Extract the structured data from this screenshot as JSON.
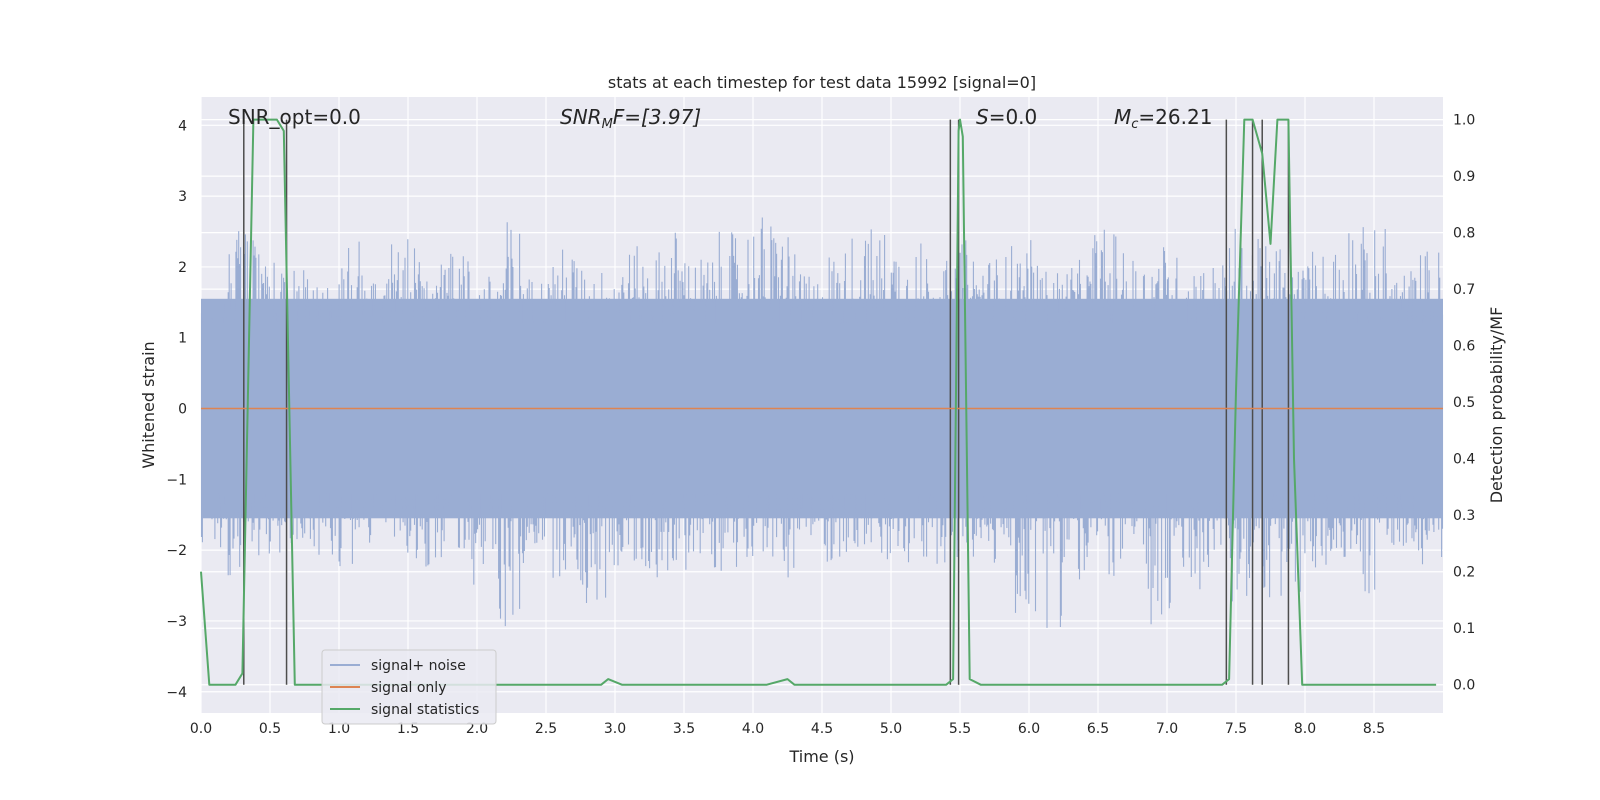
{
  "chart_data": {
    "type": "line",
    "title": "stats at each timestep for test data 15992 [signal=0]",
    "xlabel": "Time (s)",
    "ylabel": "Whitened strain",
    "y2label": "Detection probability/MF",
    "xlim": [
      0,
      9
    ],
    "ylim": [
      -4.3,
      4.4
    ],
    "y2lim": [
      -0.05,
      1.04
    ],
    "xticks": [
      "0.0",
      "0.5",
      "1.0",
      "1.5",
      "2.0",
      "2.5",
      "3.0",
      "3.5",
      "4.0",
      "4.5",
      "5.0",
      "5.5",
      "6.0",
      "6.5",
      "7.0",
      "7.5",
      "8.0",
      "8.5"
    ],
    "yticks": [
      "4",
      "3",
      "2",
      "1",
      "0",
      "−1",
      "−2",
      "−3",
      "−4"
    ],
    "y2ticks": [
      "1.0",
      "0.9",
      "0.8",
      "0.7",
      "0.6",
      "0.5",
      "0.4",
      "0.3",
      "0.2",
      "0.1",
      "0.0"
    ],
    "grid": true,
    "legend_position": "lower-left",
    "annotations": {
      "snr_opt": "SNR_opt=0.0",
      "snr_mf_main": "SNR",
      "snr_mf_sub": "M",
      "snr_mf_tail": "F=[3.97]",
      "s_main": "S",
      "s_tail": "=0.0",
      "mc_main": "M",
      "mc_sub": "c",
      "mc_tail": "=26.21"
    },
    "series": [
      {
        "name": "signal+ noise",
        "color": "#9aadd3",
        "description_only": false,
        "envelope_upper": [
          1.5,
          2.6,
          2.2,
          2.0,
          1.8,
          2.5,
          1.9,
          2.4,
          2.1,
          2.2,
          1.9,
          2.7,
          1.9,
          2.3,
          2.0,
          2.3,
          2.3,
          2.6,
          2.2,
          2.5,
          2.8,
          2.7,
          1.9,
          2.3,
          2.6,
          2.6,
          2.4,
          2.1,
          2.4,
          2.2,
          2.4,
          2.0,
          2.1,
          2.6,
          2.2,
          2.4,
          2.2,
          2.1,
          2.6,
          2.4,
          2.1,
          2.3,
          2.9,
          2.6,
          2.0,
          2.3
        ],
        "envelope_lower": [
          -2.0,
          -2.4,
          -2.2,
          -1.9,
          -2.1,
          -2.3,
          -2.0,
          -2.2,
          -2.3,
          -2.0,
          -2.5,
          -3.2,
          -2.0,
          -2.4,
          -2.9,
          -2.3,
          -2.4,
          -2.5,
          -2.1,
          -2.3,
          -2.1,
          -2.4,
          -2.0,
          -2.2,
          -2.0,
          -2.4,
          -2.3,
          -2.2,
          -2.2,
          -2.3,
          -3.0,
          -3.1,
          -2.6,
          -2.4,
          -2.4,
          -3.3,
          -2.6,
          -2.3,
          -2.9,
          -2.7,
          -2.9,
          -2.4,
          -2.1,
          -2.7,
          -2.0,
          -2.2
        ]
      },
      {
        "name": "signal only",
        "color": "#dd8452",
        "x": [
          0,
          9
        ],
        "y": [
          0,
          0
        ]
      },
      {
        "name": "signal statistics",
        "color": "#55a868",
        "axis": "right",
        "x": [
          0.0,
          0.06,
          0.12,
          0.25,
          0.3,
          0.38,
          0.55,
          0.6,
          0.68,
          0.8,
          1.5,
          2.5,
          2.9,
          2.95,
          3.05,
          3.1,
          4.1,
          4.25,
          4.3,
          5.0,
          5.4,
          5.45,
          5.47,
          5.49,
          5.5,
          5.52,
          5.57,
          5.65,
          5.9,
          7.0,
          7.4,
          7.45,
          7.5,
          7.56,
          7.62,
          7.69,
          7.75,
          7.8,
          7.85,
          7.88,
          7.92,
          7.98,
          8.06,
          8.5,
          8.95
        ],
        "y": [
          0.2,
          0.0,
          0.0,
          0.0,
          0.02,
          1.0,
          1.0,
          0.98,
          0.0,
          0.0,
          0.0,
          0.0,
          0.0,
          0.01,
          0.0,
          0.0,
          0.0,
          0.01,
          0.0,
          0.0,
          0.0,
          0.01,
          0.5,
          0.98,
          1.0,
          0.97,
          0.01,
          0.0,
          0.0,
          0.0,
          0.0,
          0.01,
          0.52,
          1.0,
          1.0,
          0.94,
          0.78,
          1.0,
          1.0,
          1.0,
          0.4,
          0.0,
          0.0,
          0.0,
          0.0
        ]
      }
    ],
    "detection_markers_x": [
      0.31,
      0.62,
      5.43,
      5.49,
      7.43,
      7.62,
      7.69,
      7.88
    ]
  },
  "legend": {
    "items": [
      "signal+ noise",
      "signal only",
      "signal statistics"
    ]
  }
}
